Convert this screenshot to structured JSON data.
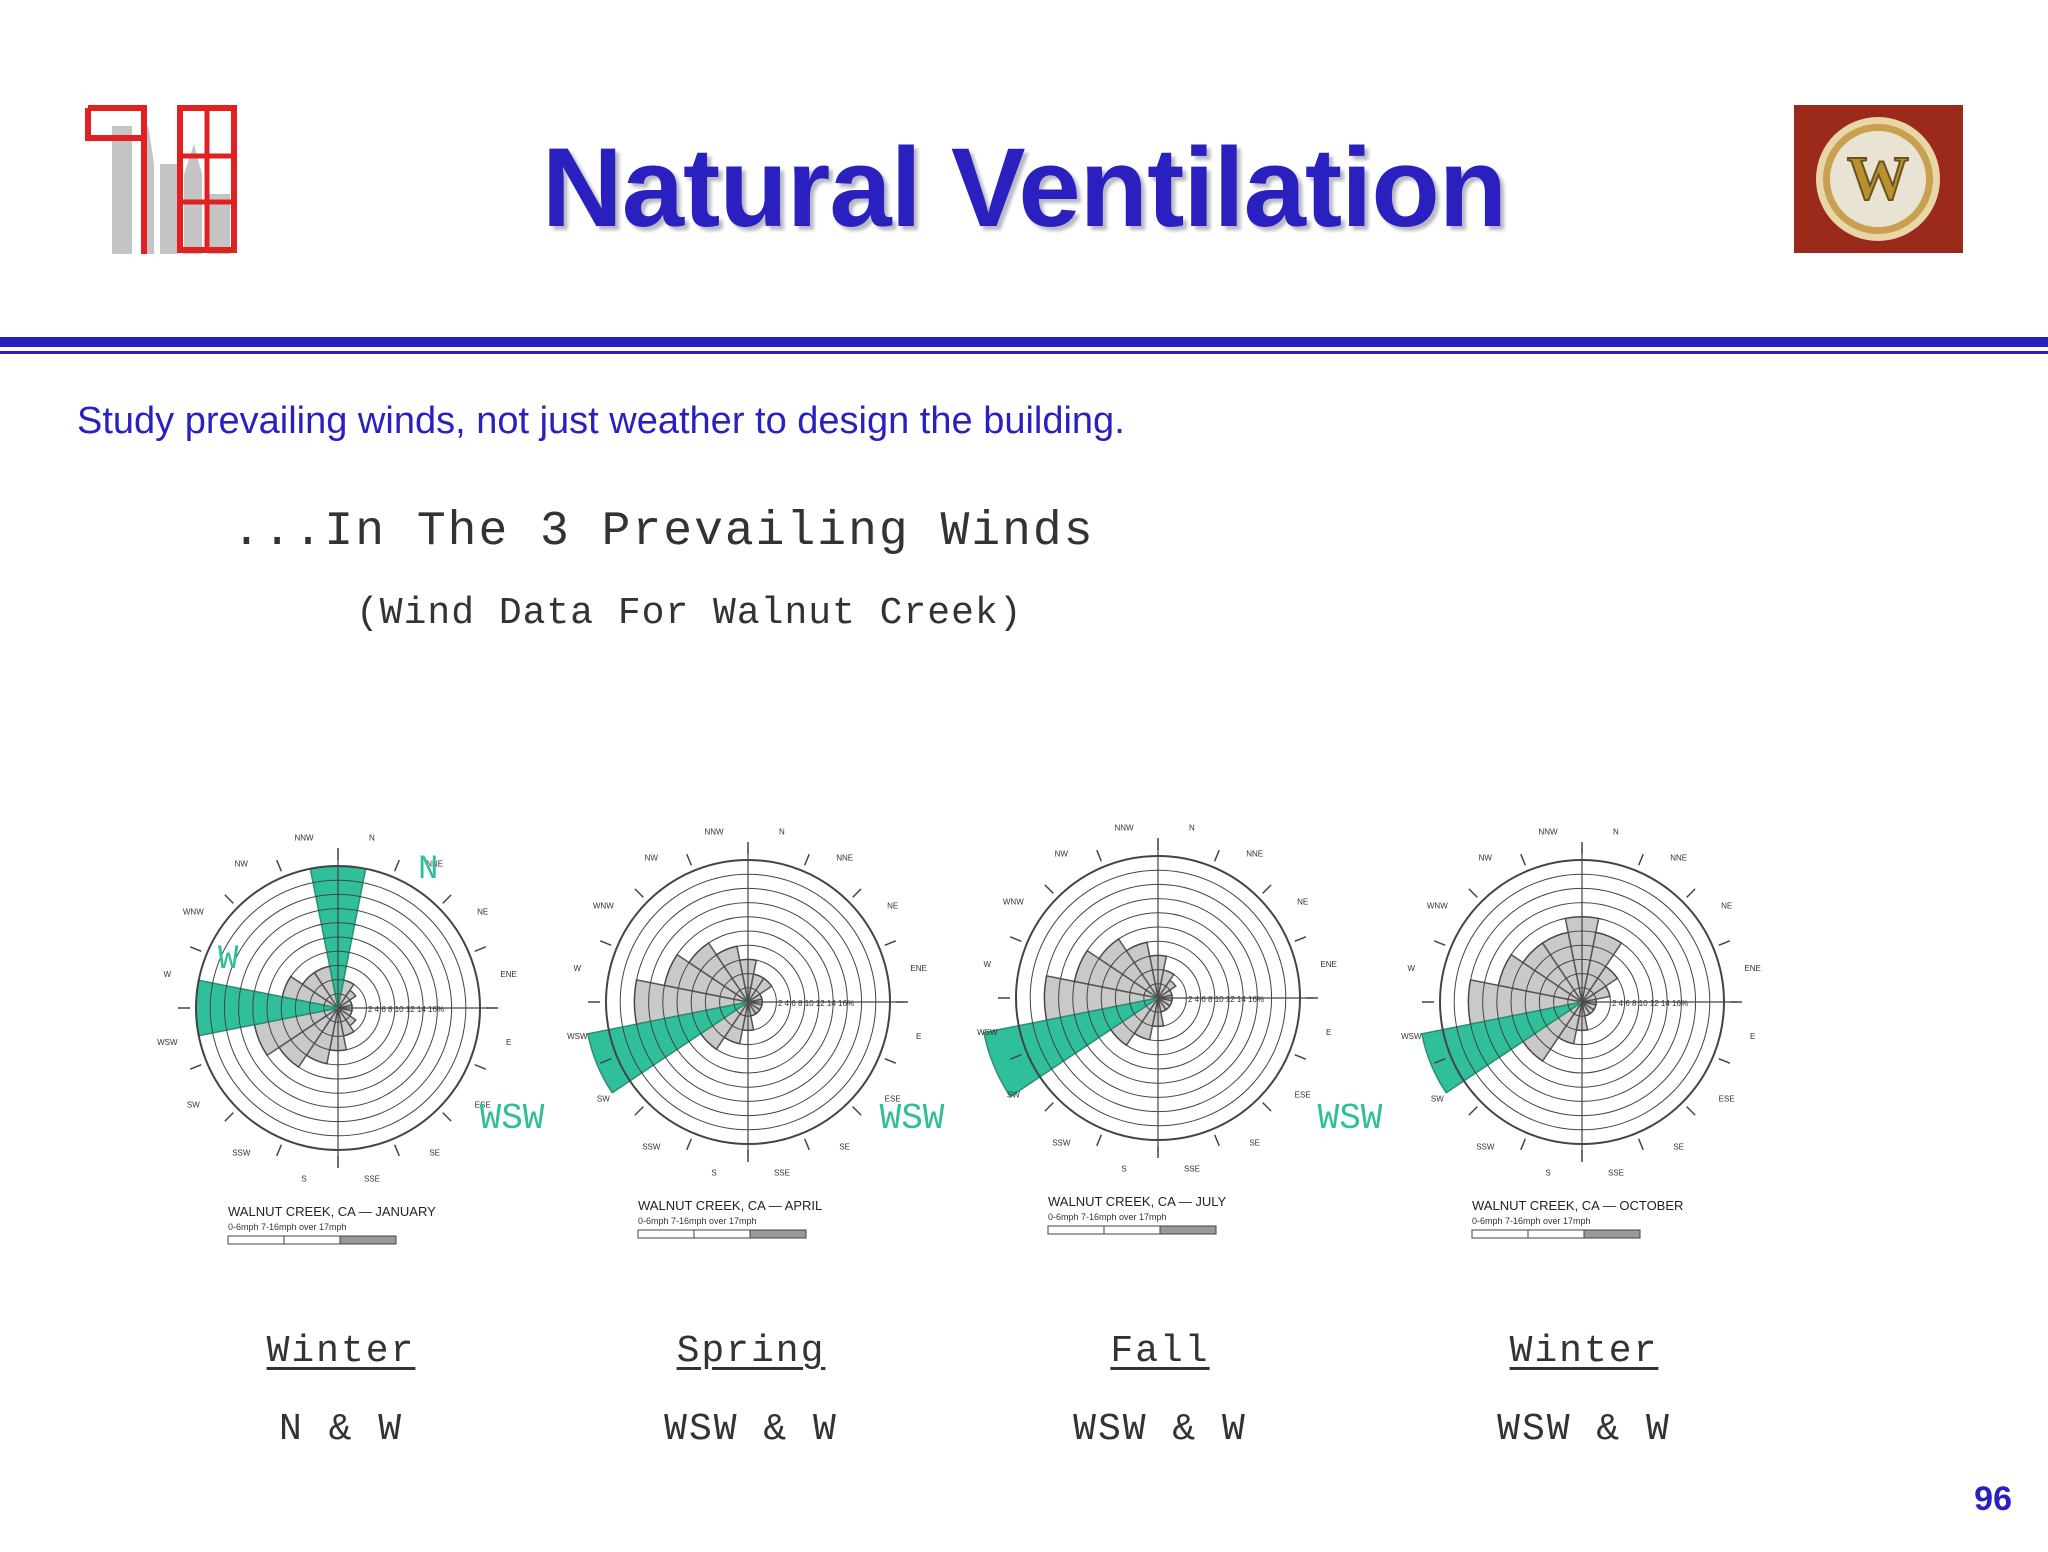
{
  "title": "Natural Ventilation",
  "subtitle": "Study prevailing winds, not just weather to design the building.",
  "heading": "...In The 3 Prevailing Winds",
  "subheading": "(Wind Data For Walnut Creek)",
  "colors": {
    "title": "#2a1fbf",
    "highlight": "#2fbf9a",
    "logo_red": "#e22020",
    "badge_bg": "#9b2a1a",
    "badge_gold": "#d8b45a"
  },
  "icons": {
    "left_logo": "city-skyline-logo-icon",
    "right_logo": "w-badge-logo-icon"
  },
  "roses": [
    {
      "caption": "WALNUT CREEK, CA — JANUARY",
      "legend": "0-6mph   7-16mph   over 17mph",
      "callouts": [
        "N",
        "W"
      ]
    },
    {
      "caption": "WALNUT CREEK, CA — APRIL",
      "legend": "0-6mph   7-16mph   over 17mph",
      "callouts": []
    },
    {
      "caption": "WALNUT CREEK, CA — JULY",
      "legend": "0-6mph   7-16mph   over 17mph",
      "callouts": []
    },
    {
      "caption": "WALNUT CREEK, CA — OCTOBER",
      "legend": "0-6mph   7-16mph   over 17mph",
      "callouts": []
    }
  ],
  "between_labels": [
    "WSW",
    "WSW",
    "WSW"
  ],
  "scale_text": "2 4 6 8 10 12 14 16%",
  "direction_labels": [
    "N",
    "NNE",
    "NE",
    "ENE",
    "E",
    "ESE",
    "SE",
    "SSE",
    "S",
    "SSW",
    "SW",
    "WSW",
    "W",
    "WNW",
    "NW",
    "NNW"
  ],
  "seasons": [
    {
      "name": "Winter",
      "winds": "N & W"
    },
    {
      "name": "Spring",
      "winds": "WSW & W"
    },
    {
      "name": "Fall",
      "winds": "WSW & W"
    },
    {
      "name": "Winter",
      "winds": "WSW & W"
    }
  ],
  "page_number": "96"
}
